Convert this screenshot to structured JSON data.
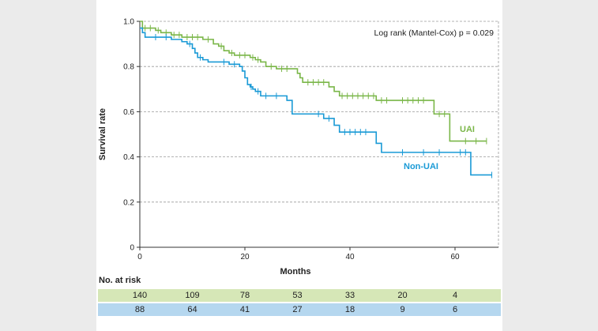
{
  "chart_data": {
    "type": "line",
    "xlabel": "Months",
    "ylabel": "Survival rate",
    "xlim": [
      0,
      68
    ],
    "ylim": [
      0,
      1.0
    ],
    "x_ticks": [
      "0",
      "20",
      "40",
      "60"
    ],
    "y_ticks": [
      "0",
      "0.2",
      "0.4",
      "0.6",
      "0.8",
      "1.0"
    ],
    "grid": "horizontal dashed",
    "annotation": "Log rank (Mantel-Cox) p = 0.029",
    "series": [
      {
        "name": "UAI",
        "color": "#7ab648",
        "steps": [
          [
            0,
            1.0
          ],
          [
            0.5,
            0.97
          ],
          [
            3,
            0.96
          ],
          [
            4,
            0.95
          ],
          [
            6,
            0.94
          ],
          [
            8,
            0.93
          ],
          [
            12,
            0.92
          ],
          [
            14,
            0.9
          ],
          [
            15,
            0.89
          ],
          [
            16,
            0.87
          ],
          [
            17,
            0.86
          ],
          [
            18,
            0.85
          ],
          [
            21,
            0.84
          ],
          [
            22,
            0.83
          ],
          [
            23,
            0.82
          ],
          [
            24,
            0.8
          ],
          [
            26,
            0.79
          ],
          [
            30,
            0.77
          ],
          [
            30.5,
            0.75
          ],
          [
            31,
            0.73
          ],
          [
            36,
            0.71
          ],
          [
            37,
            0.69
          ],
          [
            38,
            0.67
          ],
          [
            45,
            0.65
          ],
          [
            56,
            0.59
          ],
          [
            59,
            0.47
          ],
          [
            66,
            0.47
          ]
        ],
        "censored": [
          [
            1,
            0.97
          ],
          [
            2,
            0.97
          ],
          [
            3.5,
            0.96
          ],
          [
            5,
            0.95
          ],
          [
            6.5,
            0.94
          ],
          [
            7.5,
            0.94
          ],
          [
            9,
            0.93
          ],
          [
            10,
            0.93
          ],
          [
            11,
            0.93
          ],
          [
            13,
            0.92
          ],
          [
            15.5,
            0.89
          ],
          [
            17.5,
            0.86
          ],
          [
            19,
            0.85
          ],
          [
            20,
            0.85
          ],
          [
            21.5,
            0.84
          ],
          [
            22.5,
            0.83
          ],
          [
            25,
            0.8
          ],
          [
            27,
            0.79
          ],
          [
            28,
            0.79
          ],
          [
            32,
            0.73
          ],
          [
            33,
            0.73
          ],
          [
            34,
            0.73
          ],
          [
            35,
            0.73
          ],
          [
            38.5,
            0.67
          ],
          [
            39.5,
            0.67
          ],
          [
            40.5,
            0.67
          ],
          [
            41.5,
            0.67
          ],
          [
            42.5,
            0.67
          ],
          [
            43.5,
            0.67
          ],
          [
            44.5,
            0.67
          ],
          [
            46,
            0.65
          ],
          [
            47,
            0.65
          ],
          [
            50,
            0.65
          ],
          [
            51,
            0.65
          ],
          [
            52,
            0.65
          ],
          [
            53,
            0.65
          ],
          [
            54,
            0.65
          ],
          [
            57,
            0.59
          ],
          [
            58,
            0.59
          ],
          [
            62,
            0.47
          ],
          [
            64,
            0.47
          ],
          [
            66,
            0.47
          ]
        ]
      },
      {
        "name": "Non-UAI",
        "color": "#1a9ad6",
        "steps": [
          [
            0,
            0.97
          ],
          [
            0.5,
            0.95
          ],
          [
            1,
            0.93
          ],
          [
            6,
            0.92
          ],
          [
            8,
            0.91
          ],
          [
            9,
            0.9
          ],
          [
            10,
            0.88
          ],
          [
            10.5,
            0.86
          ],
          [
            11,
            0.84
          ],
          [
            12,
            0.83
          ],
          [
            13,
            0.82
          ],
          [
            17,
            0.81
          ],
          [
            19,
            0.8
          ],
          [
            19.5,
            0.78
          ],
          [
            20,
            0.75
          ],
          [
            20.5,
            0.72
          ],
          [
            21,
            0.71
          ],
          [
            21.5,
            0.7
          ],
          [
            22,
            0.69
          ],
          [
            23,
            0.67
          ],
          [
            28,
            0.65
          ],
          [
            29,
            0.59
          ],
          [
            35,
            0.57
          ],
          [
            37,
            0.54
          ],
          [
            38,
            0.51
          ],
          [
            44,
            0.51
          ],
          [
            45,
            0.46
          ],
          [
            46,
            0.42
          ],
          [
            63,
            0.32
          ],
          [
            67,
            0.32
          ]
        ],
        "censored": [
          [
            3,
            0.93
          ],
          [
            5,
            0.93
          ],
          [
            9.5,
            0.9
          ],
          [
            11.5,
            0.84
          ],
          [
            16,
            0.82
          ],
          [
            18,
            0.81
          ],
          [
            21.2,
            0.71
          ],
          [
            22.5,
            0.69
          ],
          [
            24,
            0.67
          ],
          [
            26,
            0.67
          ],
          [
            34,
            0.59
          ],
          [
            36,
            0.57
          ],
          [
            39,
            0.51
          ],
          [
            40,
            0.51
          ],
          [
            41,
            0.51
          ],
          [
            42,
            0.51
          ],
          [
            43,
            0.51
          ],
          [
            50,
            0.42
          ],
          [
            54,
            0.42
          ],
          [
            57,
            0.42
          ],
          [
            61,
            0.42
          ],
          [
            62,
            0.42
          ],
          [
            67,
            0.32
          ]
        ]
      }
    ],
    "series_labels_on_chart": [
      "UAI",
      "Non-UAI"
    ]
  },
  "risk_table": {
    "title": "No. at risk",
    "times": [
      0,
      10,
      20,
      30,
      40,
      50,
      60
    ],
    "rows": [
      {
        "series": "UAI",
        "values": [
          "140",
          "109",
          "78",
          "53",
          "33",
          "20",
          "4"
        ]
      },
      {
        "series": "Non-UAI",
        "values": [
          "88",
          "64",
          "41",
          "27",
          "18",
          "9",
          "6"
        ]
      }
    ]
  }
}
